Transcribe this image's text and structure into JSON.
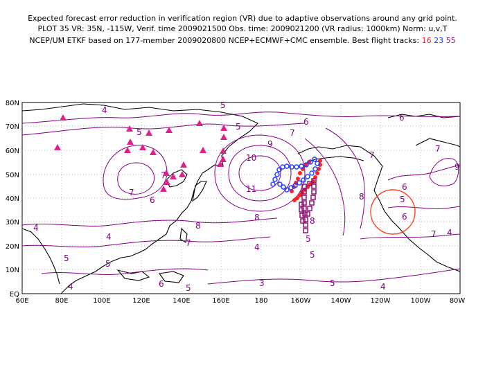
{
  "titles": {
    "line1": "Expected forecast error reduction in verification region (VR) due to adaptive observations around any grid point.",
    "line2": "PLOT 35 VR: 35N, -115W, Verif. time 2009021500 Obs. time: 2009021200 (VR radius: 1000km) Norm: u,v,T",
    "line3_prefix": "NCEP/UM ETKF based on 177-member 2009020800 NCEP+ECMWF+CMC ensemble. Best flight tracks:",
    "track_a": "16",
    "track_b": "23",
    "track_c": "55"
  },
  "axes": {
    "lat_labels": [
      "80N",
      "70N",
      "60N",
      "50N",
      "40N",
      "30N",
      "20N",
      "10N",
      "EQ"
    ],
    "lon_labels": [
      "60E",
      "80E",
      "100E",
      "120E",
      "140E",
      "160E",
      "180",
      "160W",
      "140W",
      "120W",
      "100W",
      "80W"
    ]
  },
  "contour_labels": [
    "4",
    "5",
    "6",
    "7",
    "9",
    "10",
    "11",
    "8",
    "5",
    "6",
    "7",
    "7",
    "4",
    "5",
    "6",
    "5",
    "7",
    "8",
    "8",
    "7",
    "9",
    "4",
    "6",
    "7",
    "5",
    "6",
    "4",
    "5",
    "5",
    "4",
    "3",
    "5",
    "5",
    "4",
    "7",
    "6",
    "5",
    "4",
    "8"
  ],
  "colors": {
    "contour": "#800080",
    "track16": "#ff2020",
    "track23": "#2040ff",
    "track55": "#8a1070",
    "triangle": "#e0208a",
    "vr_circle": "#ff4020"
  },
  "map": {
    "lon_range": [
      "60E",
      "80W"
    ],
    "lat_range": [
      "EQ",
      "80N"
    ],
    "verification_region": {
      "center_lat": 35,
      "center_lon": -115,
      "radius_km": 1000
    }
  }
}
